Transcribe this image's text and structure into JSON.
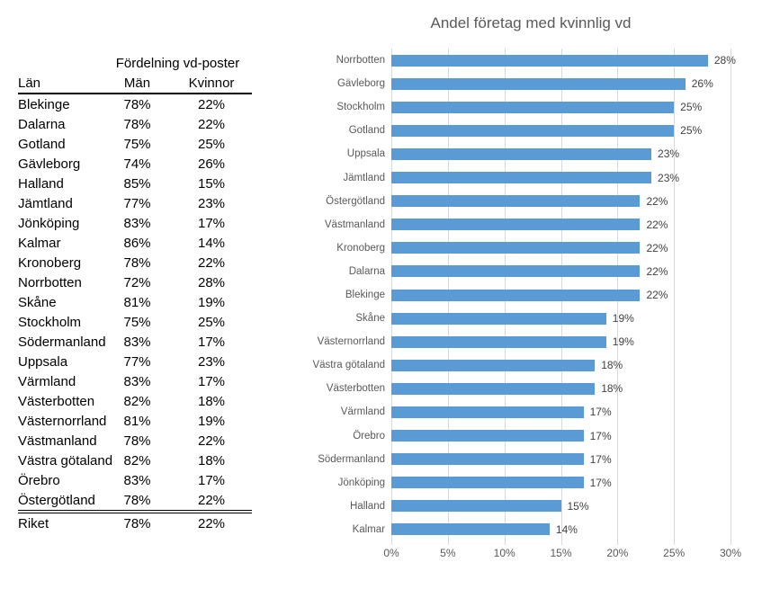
{
  "table": {
    "title": "Fördelning vd-poster",
    "columns": [
      "Län",
      "Män",
      "Kvinnor"
    ],
    "rows": [
      [
        "Blekinge",
        "78%",
        "22%"
      ],
      [
        "Dalarna",
        "78%",
        "22%"
      ],
      [
        "Gotland",
        "75%",
        "25%"
      ],
      [
        "Gävleborg",
        "74%",
        "26%"
      ],
      [
        "Halland",
        "85%",
        "15%"
      ],
      [
        "Jämtland",
        "77%",
        "23%"
      ],
      [
        "Jönköping",
        "83%",
        "17%"
      ],
      [
        "Kalmar",
        "86%",
        "14%"
      ],
      [
        "Kronoberg",
        "78%",
        "22%"
      ],
      [
        "Norrbotten",
        "72%",
        "28%"
      ],
      [
        "Skåne",
        "81%",
        "19%"
      ],
      [
        "Stockholm",
        "75%",
        "25%"
      ],
      [
        "Södermanland",
        "83%",
        "17%"
      ],
      [
        "Uppsala",
        "77%",
        "23%"
      ],
      [
        "Värmland",
        "83%",
        "17%"
      ],
      [
        "Västerbotten",
        "82%",
        "18%"
      ],
      [
        "Västernorrland",
        "81%",
        "19%"
      ],
      [
        "Västmanland",
        "78%",
        "22%"
      ],
      [
        "Västra götaland",
        "82%",
        "18%"
      ],
      [
        "Örebro",
        "83%",
        "17%"
      ],
      [
        "Östergötland",
        "78%",
        "22%"
      ]
    ],
    "total_row": [
      "Riket",
      "78%",
      "22%"
    ]
  },
  "chart_data": {
    "type": "bar",
    "orientation": "horizontal",
    "title": "Andel företag med kvinnlig vd",
    "categories": [
      "Norrbotten",
      "Gävleborg",
      "Stockholm",
      "Gotland",
      "Uppsala",
      "Jämtland",
      "Östergötland",
      "Västmanland",
      "Kronoberg",
      "Dalarna",
      "Blekinge",
      "Skåne",
      "Västernorrland",
      "Västra götaland",
      "Västerbotten",
      "Värmland",
      "Örebro",
      "Södermanland",
      "Jönköping",
      "Halland",
      "Kalmar"
    ],
    "values": [
      28,
      26,
      25,
      25,
      23,
      23,
      22,
      22,
      22,
      22,
      22,
      19,
      19,
      18,
      18,
      17,
      17,
      17,
      17,
      15,
      14
    ],
    "data_labels": [
      "28%",
      "26%",
      "25%",
      "25%",
      "23%",
      "23%",
      "22%",
      "22%",
      "22%",
      "22%",
      "22%",
      "19%",
      "19%",
      "18%",
      "18%",
      "17%",
      "17%",
      "17%",
      "17%",
      "15%",
      "14%"
    ],
    "xlim": [
      0,
      30
    ],
    "x_ticks": [
      "0%",
      "5%",
      "10%",
      "15%",
      "20%",
      "25%",
      "30%"
    ],
    "grid": true,
    "legend": "none",
    "bar_color": "#5B9BD5",
    "grid_color": "#D9D9D9",
    "title_color": "#595959",
    "axis_label_color": "#595959",
    "data_label_color": "#404040"
  }
}
